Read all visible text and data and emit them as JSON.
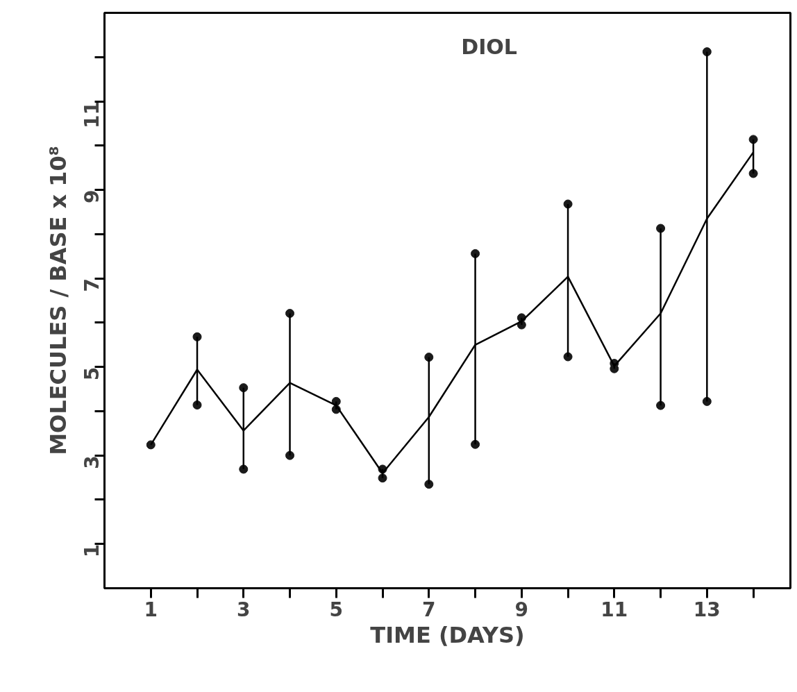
{
  "chart_data": {
    "type": "line",
    "annotations": [
      "DIOL"
    ],
    "xlabel": "TIME (DAYS)",
    "ylabel": "MOLECULES / BASE x 10⁸",
    "x": [
      1,
      2,
      3,
      4,
      5,
      6,
      7,
      8,
      9,
      10,
      11,
      12,
      13,
      14
    ],
    "series": [
      {
        "color": "#000000",
        "marker": "none",
        "values": [
          3.24,
          4.94,
          3.56,
          4.64,
          4.13,
          2.6,
          3.87,
          5.5,
          6.03,
          7.04,
          5.02,
          6.21,
          8.35,
          9.85
        ],
        "errors": [
          null,
          [
            4.14,
            5.68
          ],
          [
            2.69,
            4.53
          ],
          [
            3.0,
            6.21
          ],
          [
            4.04,
            4.22
          ],
          [
            2.49,
            2.69
          ],
          [
            2.35,
            5.22
          ],
          [
            3.25,
            7.56
          ],
          [
            5.95,
            6.11
          ],
          [
            5.23,
            8.68
          ],
          [
            4.96,
            5.08
          ],
          [
            4.13,
            8.13
          ],
          [
            4.22,
            12.12
          ],
          [
            9.37,
            10.14
          ]
        ]
      },
      {
        "type": "scatter",
        "color": "#1a1a1a",
        "marker": "circle",
        "x": [
          1,
          2,
          2,
          3,
          3,
          4,
          4,
          5,
          5,
          6,
          6,
          7,
          7,
          8,
          8,
          9,
          9,
          10,
          10,
          11,
          11,
          12,
          12,
          13,
          13,
          14,
          14
        ],
        "values": [
          3.24,
          4.14,
          5.68,
          2.69,
          4.53,
          3.0,
          6.21,
          4.04,
          4.22,
          2.49,
          2.69,
          2.35,
          5.22,
          3.25,
          7.56,
          5.95,
          6.11,
          5.23,
          8.68,
          4.96,
          5.08,
          4.13,
          8.13,
          4.22,
          12.12,
          9.37,
          10.14
        ]
      }
    ],
    "xlim": [
      0,
      14.8
    ],
    "ylim": [
      0,
      13
    ],
    "xticks": [
      1,
      {
        "value": 2,
        "label": null
      },
      3,
      {
        "value": 4,
        "label": null
      },
      5,
      {
        "value": 6,
        "label": null
      },
      7,
      {
        "value": 8,
        "label": null
      },
      9,
      {
        "value": 10,
        "label": null
      },
      11,
      {
        "value": 12,
        "label": null
      },
      13,
      {
        "value": 14,
        "label": null
      }
    ],
    "yticks": [
      1,
      {
        "value": 2,
        "label": null
      },
      3,
      {
        "value": 4,
        "label": null
      },
      5,
      {
        "value": 6,
        "label": null
      },
      7,
      {
        "value": 8,
        "label": null
      },
      9,
      {
        "value": 10,
        "label": null
      },
      11,
      {
        "value": 12,
        "label": null
      }
    ],
    "grid": false
  }
}
